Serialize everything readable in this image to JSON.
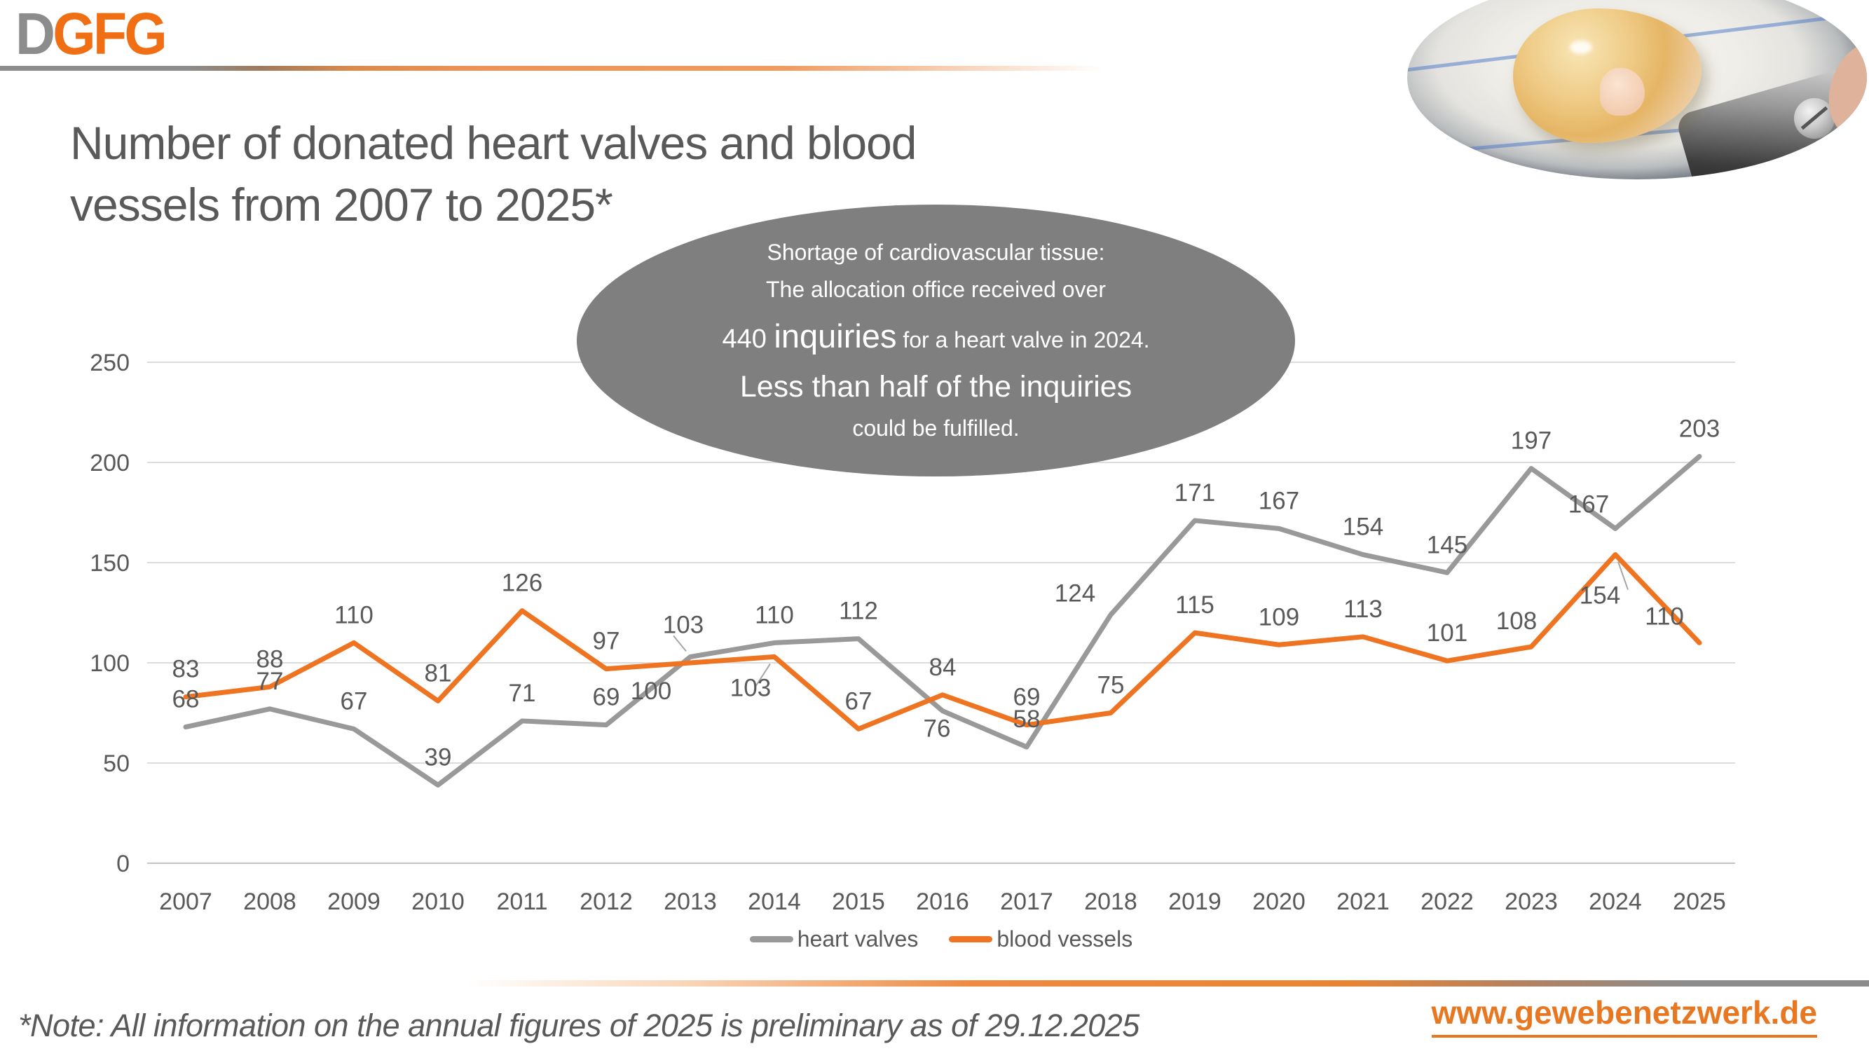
{
  "logo": {
    "d": "D",
    "gfg": "GFG"
  },
  "title": "Number of donated heart valves and blood\nvessels from 2007 to 2025*",
  "photo_alt": "donated-heart-valve-tissue-photo",
  "callout": {
    "line1": "Shortage of cardiovascular tissue:",
    "line2": "The allocation office received over",
    "line3_prefix": "440 ",
    "line3_big": "inquiries",
    "line3_suffix": " for a heart valve in 2024.",
    "line4": "Less than half of the inquiries",
    "line5": "could be fulfilled."
  },
  "colors": {
    "heart_valves": "#999999",
    "blood_vessels": "#EE7421",
    "text_gray": "#595959",
    "callout_gray": "#7F7F7F",
    "gridline": "#DCDCDC",
    "axis_line": "#C4C4C4",
    "brand_orange": "#F06E14",
    "brand_gray": "#8C8C8C",
    "website_orange": "#E87722"
  },
  "chart_data": {
    "type": "line",
    "title": "Number of donated heart valves and blood vessels from 2007 to 2025*",
    "categories": [
      "2007",
      "2008",
      "2009",
      "2010",
      "2011",
      "2012",
      "2013",
      "2014",
      "2015",
      "2016",
      "2017",
      "2018",
      "2019",
      "2020",
      "2021",
      "2022",
      "2023",
      "2024",
      "2025"
    ],
    "series": [
      {
        "name": "heart valves",
        "color": "#999999",
        "values": [
          68,
          77,
          67,
          39,
          71,
          69,
          103,
          110,
          112,
          76,
          58,
          124,
          171,
          167,
          154,
          145,
          197,
          167,
          203
        ]
      },
      {
        "name": "blood vessels",
        "color": "#EE7421",
        "values": [
          83,
          88,
          110,
          81,
          126,
          97,
          100,
          103,
          67,
          84,
          69,
          75,
          115,
          109,
          113,
          101,
          108,
          154,
          110
        ]
      }
    ],
    "xlabel": "",
    "ylabel": "",
    "ylim": [
      0,
      250
    ],
    "yticks": [
      0,
      50,
      100,
      150,
      200,
      250
    ],
    "grid": true,
    "legend_position": "bottom",
    "data_labels": true
  },
  "footer": {
    "note": "*Note: All information on the annual figures of 2025 is preliminary as of 29.12.2025",
    "website": "www.gewebenetzwerk.de"
  }
}
